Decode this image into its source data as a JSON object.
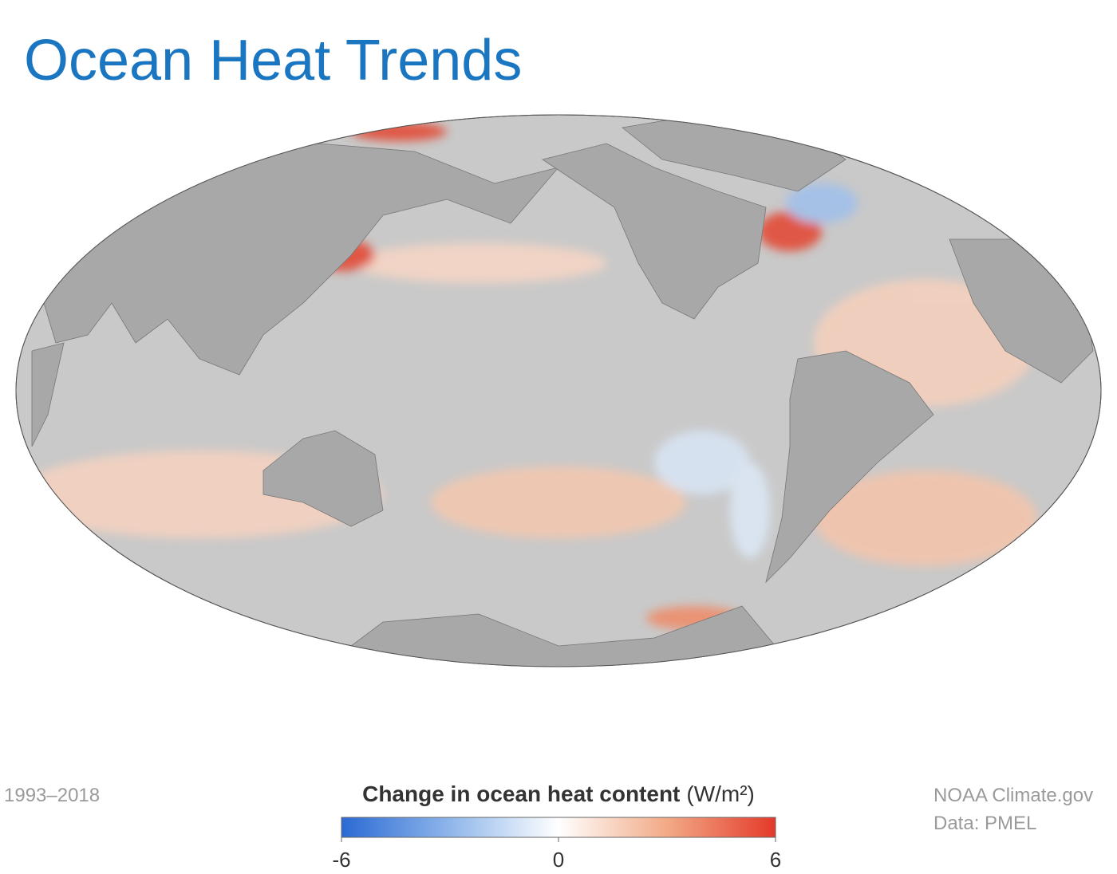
{
  "header": {
    "title": "Ocean Heat Trends"
  },
  "period": "1993–2018",
  "legend": {
    "title": "Change in ocean heat content",
    "unit": "(W/m²)",
    "range": [
      -6,
      6
    ],
    "ticks": [
      -6,
      0,
      6
    ]
  },
  "credits": [
    "NOAA Climate.gov",
    "Data: PMEL"
  ]
}
